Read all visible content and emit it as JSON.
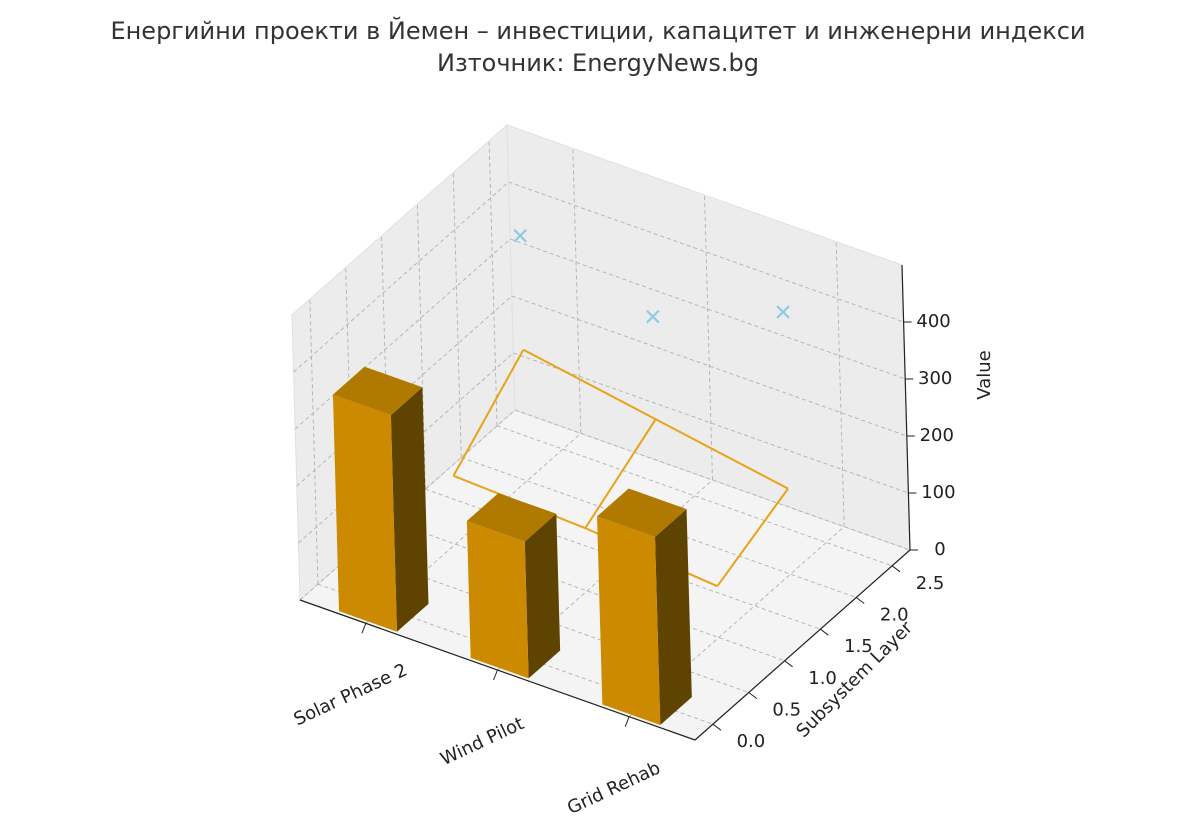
{
  "chart_data": {
    "type": "bar3d",
    "title": "Енергийни проекти в Йемен – инвестиции, капацитет и инженерни индекси",
    "subtitle": "Източник: EnergyNews.bg",
    "categories": [
      "Solar Phase 2",
      "Wind Pilot",
      "Grid Rehab"
    ],
    "ylabel": "Subsystem Layer",
    "zlabel": "Value",
    "xlim": [
      -0.5,
      2.5
    ],
    "ylim": [
      -0.25,
      2.75
    ],
    "zlim": [
      0,
      500
    ],
    "yticks": [
      {
        "value": 0,
        "label": "0.0"
      },
      {
        "value": 0.5,
        "label": "0.5"
      },
      {
        "value": 1,
        "label": "1.0"
      },
      {
        "value": 1.5,
        "label": "1.5"
      },
      {
        "value": 2,
        "label": "2.0"
      },
      {
        "value": 2.5,
        "label": "2.5"
      }
    ],
    "zticks": [
      0,
      100,
      200,
      300,
      400
    ],
    "grid": true,
    "bars": {
      "layer": 0,
      "values": [
        380,
        240,
        330
      ],
      "color": "#cc8a00"
    },
    "wireframe": {
      "layers": [
        1,
        2
      ],
      "values": [
        [
          120,
          110,
          90
        ],
        [
          230,
          190,
          150
        ]
      ],
      "color": "#e8a317"
    },
    "scatter": {
      "layer": 2,
      "values": [
        430,
        370,
        460
      ],
      "color": "#8ecae6"
    }
  }
}
